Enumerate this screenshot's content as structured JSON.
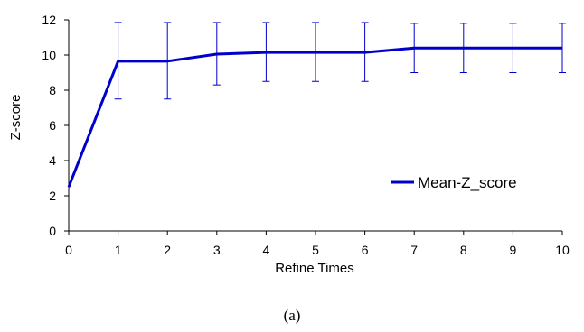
{
  "chart_data": {
    "type": "line",
    "title": "",
    "xlabel": "Refine Times",
    "ylabel": "Z-score",
    "x": [
      0,
      1,
      2,
      3,
      4,
      5,
      6,
      7,
      8,
      9,
      10
    ],
    "xlim": [
      0,
      10
    ],
    "ylim": [
      0,
      12
    ],
    "xticks": [
      "0",
      "1",
      "2",
      "3",
      "4",
      "5",
      "6",
      "7",
      "8",
      "9",
      "10"
    ],
    "yticks": [
      "0",
      "2",
      "4",
      "6",
      "8",
      "10",
      "12"
    ],
    "grid": false,
    "legend_position": "middle-right",
    "series": [
      {
        "name": "Mean-Z_score",
        "color": "#0000cc",
        "values": [
          2.5,
          9.65,
          9.65,
          10.05,
          10.15,
          10.15,
          10.15,
          10.4,
          10.4,
          10.4,
          10.4
        ],
        "error_upper": [
          null,
          11.85,
          11.85,
          11.85,
          11.85,
          11.85,
          11.85,
          11.8,
          11.8,
          11.8,
          11.8
        ],
        "error_lower": [
          null,
          7.5,
          7.5,
          8.3,
          8.5,
          8.5,
          8.5,
          9.0,
          9.0,
          9.0,
          9.0
        ]
      }
    ]
  },
  "caption": "(a)"
}
